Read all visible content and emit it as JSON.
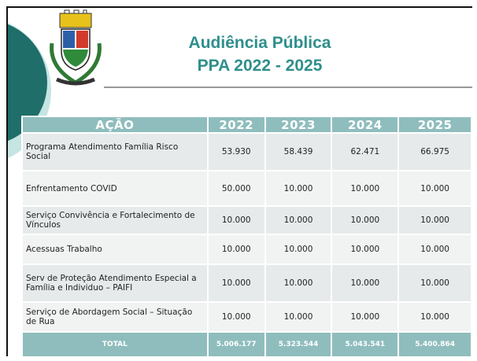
{
  "header": {
    "title": "Audiência Pública",
    "subtitle": "PPA 2022 - 2025"
  },
  "table": {
    "columns": [
      "AÇÃO",
      "2022",
      "2023",
      "2024",
      "2025"
    ],
    "rows": [
      [
        "Programa Atendimento Família Risco Social",
        "53.930",
        "58.439",
        "62.471",
        "66.975"
      ],
      [
        "Enfrentamento COVID",
        "50.000",
        "10.000",
        "10.000",
        "10.000"
      ],
      [
        "Serviço Convivência e Fortalecimento de Vínculos",
        "10.000",
        "10.000",
        "10.000",
        "10.000"
      ],
      [
        "Acessuas Trabalho",
        "10.000",
        "10.000",
        "10.000",
        "10.000"
      ],
      [
        "Serv de Proteção Atendimento Especial a Família e Individuo – PAIFI",
        "10.000",
        "10.000",
        "10.000",
        "10.000"
      ],
      [
        "Serviço de Abordagem Social – Situação de Rua",
        "10.000",
        "10.000",
        "10.000",
        "10.000"
      ]
    ],
    "total": [
      "TOTAL",
      "5.006.177",
      "5.323.544",
      "5.043.541",
      "5.400.864"
    ]
  }
}
